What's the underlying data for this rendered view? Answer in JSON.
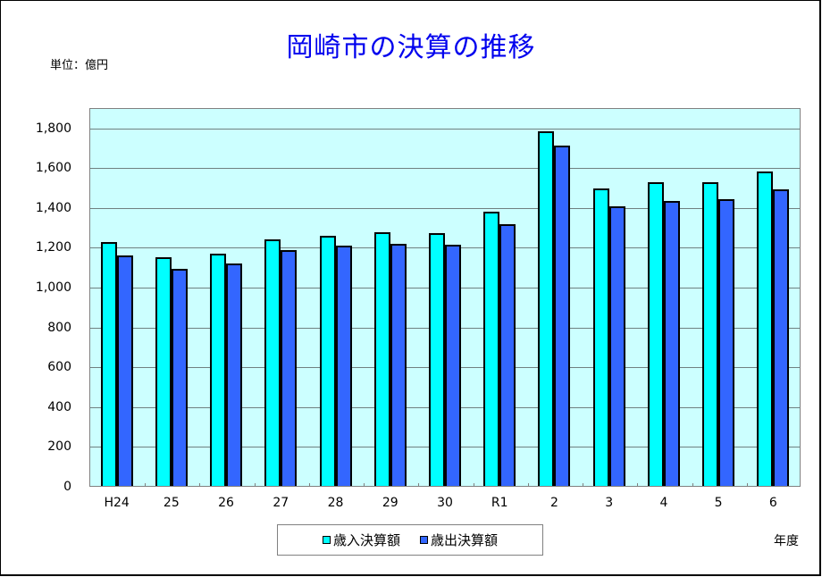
{
  "title": "岡崎市の決算の推移",
  "unit_label": "単位：億円",
  "x_axis_label": "年度",
  "colors": {
    "plot_background": "#ccffff",
    "revenue": "#00ffff",
    "expenditure": "#3366ff",
    "title": "#0000ee"
  },
  "legend": {
    "items": [
      {
        "label": "歳入決算額",
        "color": "#00ffff"
      },
      {
        "label": "歳出決算額",
        "color": "#3366ff"
      }
    ]
  },
  "y_ticks": [
    "0",
    "200",
    "400",
    "600",
    "800",
    "1,000",
    "1,200",
    "1,400",
    "1,600",
    "1,800"
  ],
  "chart_data": {
    "type": "bar",
    "title": "岡崎市の決算の推移",
    "xlabel": "年度",
    "ylabel": "単位：億円",
    "ylim": [
      0,
      1900
    ],
    "grid": true,
    "legend_position": "bottom",
    "categories": [
      "H24",
      "25",
      "26",
      "27",
      "28",
      "29",
      "30",
      "R1",
      "2",
      "3",
      "4",
      "5",
      "6"
    ],
    "series": [
      {
        "name": "歳入決算額",
        "values": [
          1224,
          1148,
          1167,
          1237,
          1254,
          1273,
          1270,
          1375,
          1783,
          1495,
          1526,
          1523,
          1581
        ]
      },
      {
        "name": "歳出決算額",
        "values": [
          1157,
          1091,
          1116,
          1185,
          1206,
          1215,
          1212,
          1313,
          1709,
          1405,
          1433,
          1441,
          1489
        ]
      }
    ]
  }
}
